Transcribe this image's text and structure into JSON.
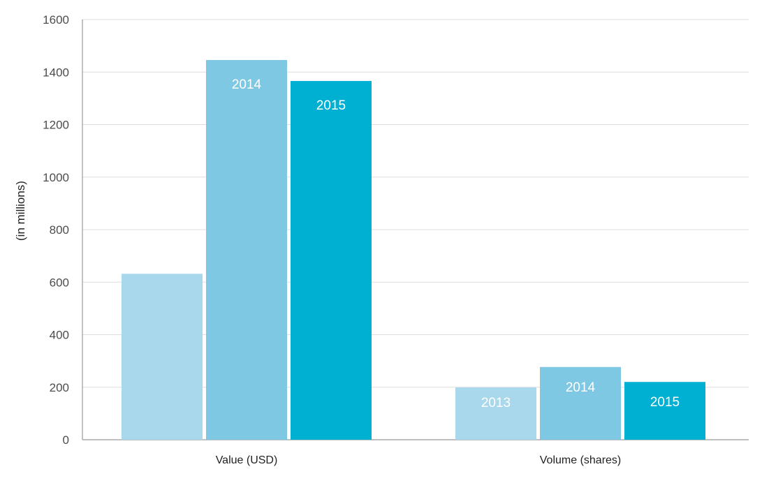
{
  "chart_data": {
    "type": "bar",
    "categories": [
      "Value (USD)",
      "Volume (shares)"
    ],
    "series": [
      {
        "name": "2013",
        "values": [
          632,
          199
        ],
        "color": "#a9d8ed"
      },
      {
        "name": "2014",
        "values": [
          1446,
          277
        ],
        "color": "#7fc8e4"
      },
      {
        "name": "2015",
        "values": [
          1366,
          220
        ],
        "color": "#00b0d3"
      }
    ],
    "title": "",
    "xlabel": "",
    "ylabel": "(in millions)",
    "ylim": [
      0,
      1600
    ],
    "yticks": [
      "0",
      "200",
      "400",
      "600",
      "800",
      "1000",
      "1200",
      "1400",
      "1600"
    ],
    "grid": true,
    "legend": "none (series names shown as labels inside bars)"
  }
}
